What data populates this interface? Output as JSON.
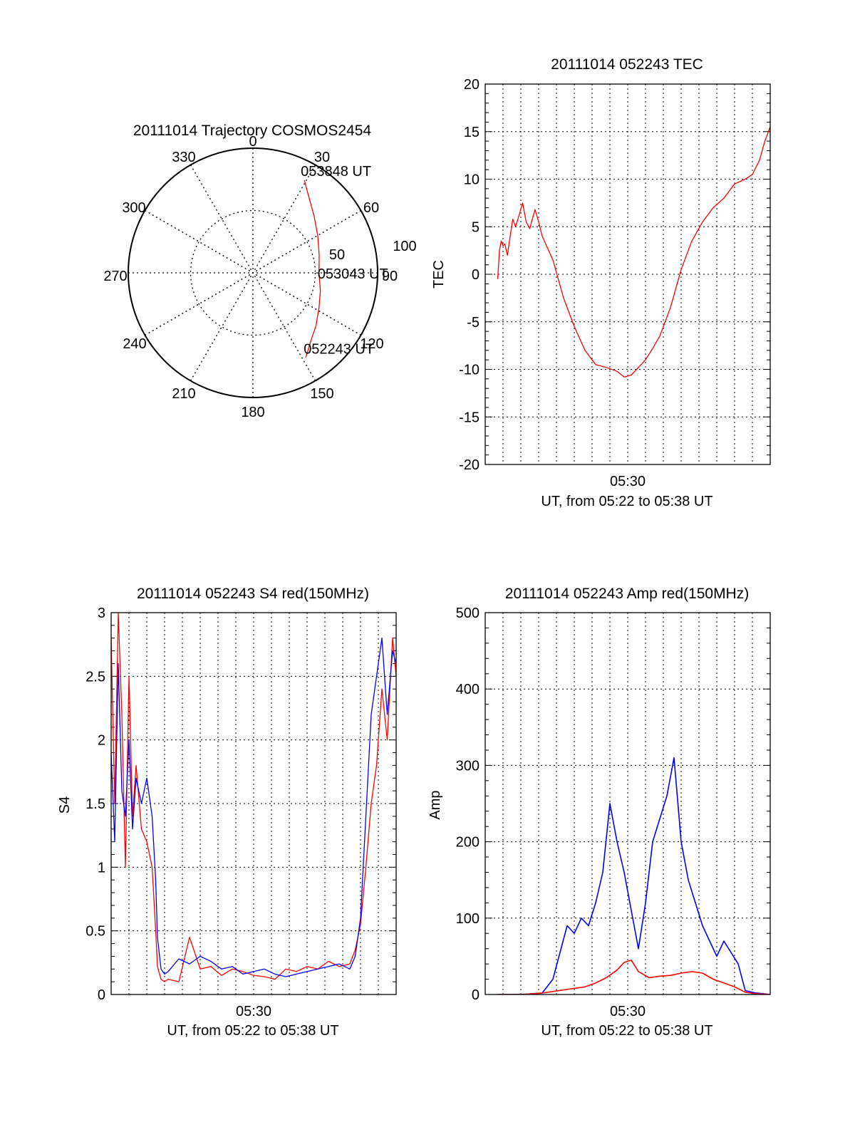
{
  "figure": {
    "background": "#ffffff",
    "series_colors": {
      "red": "#ff0000",
      "blue": "#0000ff"
    }
  },
  "chart_data": [
    {
      "id": "trajectory",
      "type": "polar",
      "title": "20111014 Trajectory COSMOS2454",
      "azimuth_labels": [
        "0",
        "30",
        "60",
        "90",
        "120",
        "150",
        "180",
        "210",
        "240",
        "270",
        "300",
        "330"
      ],
      "radial_labels": [
        "50",
        "100"
      ],
      "grid": true,
      "track": {
        "color": "#ff0000",
        "points": [
          {
            "az": 148,
            "zenith": 80
          },
          {
            "az": 140,
            "zenith": 72
          },
          {
            "az": 130,
            "zenith": 66
          },
          {
            "az": 118,
            "zenith": 60
          },
          {
            "az": 105,
            "zenith": 56
          },
          {
            "az": 90,
            "zenith": 53
          },
          {
            "az": 75,
            "zenith": 55
          },
          {
            "az": 60,
            "zenith": 60
          },
          {
            "az": 47,
            "zenith": 67
          },
          {
            "az": 36,
            "zenith": 76
          },
          {
            "az": 29,
            "zenith": 85
          }
        ]
      },
      "annotations": [
        {
          "text": "053848 UT",
          "az": 29,
          "zenith": 85
        },
        {
          "text": "053043 UT",
          "az": 90,
          "zenith": 53
        },
        {
          "text": "052243 UT",
          "az": 148,
          "zenith": 80
        }
      ]
    },
    {
      "id": "tec",
      "type": "line",
      "title": "20111014 052243 TEC",
      "xlabel": "UT, from 05:22 to 05:38 UT",
      "ylabel": "TEC",
      "xlim": [
        5.36667,
        5.63333
      ],
      "ylim": [
        -20,
        20
      ],
      "yticks": [
        -20,
        -15,
        -10,
        -5,
        0,
        5,
        10,
        15,
        20
      ],
      "xtick_labels": [
        {
          "value": 5.5,
          "label": "05:30"
        }
      ],
      "grid": true,
      "series": [
        {
          "color": "#ff0000",
          "x": [
            5.37833,
            5.38,
            5.38167,
            5.38333,
            5.385,
            5.3875,
            5.39,
            5.3925,
            5.395,
            5.39833,
            5.40167,
            5.405,
            5.40833,
            5.41,
            5.41333,
            5.41667,
            5.42,
            5.43,
            5.44,
            5.45,
            5.46,
            5.47,
            5.48,
            5.49,
            5.49667,
            5.50333,
            5.51,
            5.51667,
            5.52333,
            5.53,
            5.54,
            5.55,
            5.56,
            5.57,
            5.58,
            5.59,
            5.6,
            5.61,
            5.61667,
            5.62333,
            5.62833,
            5.63333
          ],
          "values": [
            -0.5,
            2.5,
            3.5,
            3.0,
            3.2,
            2.0,
            4.0,
            5.8,
            5.0,
            6.2,
            7.5,
            5.5,
            4.8,
            5.5,
            6.8,
            5.5,
            4.0,
            1.5,
            -2.5,
            -5.5,
            -8.0,
            -9.5,
            -9.8,
            -10.2,
            -10.8,
            -10.6,
            -9.8,
            -9.0,
            -7.8,
            -6.5,
            -3.5,
            0.5,
            3.5,
            5.5,
            7.0,
            8.0,
            9.5,
            10.0,
            10.5,
            12.0,
            14.0,
            15.5
          ]
        }
      ]
    },
    {
      "id": "s4",
      "type": "line",
      "title": "20111014 052243 S4 red(150MHz)",
      "xlabel": "UT, from 05:22 to 05:38 UT",
      "ylabel": "S4",
      "xlim": [
        5.36667,
        5.63333
      ],
      "ylim": [
        0,
        3
      ],
      "yticks": [
        0,
        0.5,
        1,
        1.5,
        2,
        2.5,
        3
      ],
      "ytick_labels": [
        "0",
        "0.5",
        "1",
        "1.5",
        "2",
        "2.5",
        "3"
      ],
      "xtick_labels": [
        {
          "value": 5.5,
          "label": "05:30"
        }
      ],
      "grid": true,
      "series": [
        {
          "color": "#ff0000",
          "x": [
            5.36667,
            5.37,
            5.37333,
            5.37667,
            5.38,
            5.38333,
            5.38667,
            5.39,
            5.395,
            5.4,
            5.405,
            5.40833,
            5.41,
            5.41333,
            5.41667,
            5.42,
            5.43,
            5.44,
            5.45,
            5.46,
            5.47,
            5.48,
            5.49,
            5.5,
            5.51,
            5.52,
            5.53,
            5.54,
            5.55,
            5.56,
            5.57,
            5.58,
            5.59,
            5.595,
            5.6,
            5.605,
            5.61,
            5.615,
            5.62,
            5.625,
            5.63,
            5.63333
          ],
          "values": [
            2.8,
            1.5,
            3.0,
            2.2,
            1.0,
            2.5,
            1.4,
            1.8,
            1.3,
            1.2,
            1.0,
            0.5,
            0.22,
            0.12,
            0.1,
            0.12,
            0.1,
            0.45,
            0.2,
            0.22,
            0.15,
            0.2,
            0.18,
            0.15,
            0.14,
            0.12,
            0.2,
            0.18,
            0.22,
            0.2,
            0.26,
            0.22,
            0.24,
            0.35,
            0.55,
            1.0,
            1.5,
            1.8,
            2.4,
            2.0,
            2.8,
            2.5
          ]
        },
        {
          "color": "#0000ff",
          "x": [
            5.36667,
            5.37,
            5.37333,
            5.37667,
            5.38,
            5.38333,
            5.38667,
            5.39,
            5.395,
            5.4,
            5.405,
            5.40833,
            5.41,
            5.41333,
            5.41667,
            5.42,
            5.43,
            5.44,
            5.45,
            5.46,
            5.47,
            5.48,
            5.49,
            5.5,
            5.51,
            5.52,
            5.53,
            5.54,
            5.55,
            5.56,
            5.57,
            5.58,
            5.59,
            5.595,
            5.6,
            5.605,
            5.61,
            5.615,
            5.62,
            5.625,
            5.63,
            5.63333
          ],
          "values": [
            1.9,
            1.2,
            2.6,
            1.6,
            1.4,
            2.0,
            1.3,
            1.7,
            1.5,
            1.7,
            1.4,
            0.9,
            0.45,
            0.2,
            0.16,
            0.18,
            0.28,
            0.24,
            0.3,
            0.26,
            0.2,
            0.22,
            0.16,
            0.18,
            0.2,
            0.16,
            0.14,
            0.16,
            0.18,
            0.2,
            0.22,
            0.24,
            0.2,
            0.3,
            0.6,
            1.4,
            2.2,
            2.5,
            2.8,
            2.2,
            2.7,
            2.6
          ]
        }
      ]
    },
    {
      "id": "amp",
      "type": "line",
      "title": "20111014 052243 Amp red(150MHz)",
      "xlabel": "UT, from 05:22 to 05:38 UT",
      "ylabel": "Amp",
      "xlim": [
        5.36667,
        5.63333
      ],
      "ylim": [
        0,
        500
      ],
      "yticks": [
        0,
        100,
        200,
        300,
        400,
        500
      ],
      "xtick_labels": [
        {
          "value": 5.5,
          "label": "05:30"
        }
      ],
      "grid": true,
      "series": [
        {
          "color": "#0000ff",
          "x": [
            5.37833,
            5.4,
            5.42,
            5.43,
            5.43667,
            5.44333,
            5.45,
            5.45667,
            5.46333,
            5.47,
            5.47667,
            5.48333,
            5.49,
            5.49667,
            5.50333,
            5.51,
            5.51667,
            5.52333,
            5.53,
            5.53667,
            5.54333,
            5.55,
            5.55667,
            5.56333,
            5.57,
            5.57667,
            5.58333,
            5.59,
            5.59667,
            5.60333,
            5.61,
            5.62,
            5.63333
          ],
          "values": [
            0,
            0,
            2,
            20,
            55,
            90,
            80,
            100,
            90,
            120,
            160,
            250,
            200,
            160,
            110,
            60,
            120,
            200,
            230,
            260,
            310,
            200,
            150,
            120,
            90,
            70,
            50,
            70,
            55,
            40,
            5,
            2,
            0
          ]
        },
        {
          "color": "#ff0000",
          "x": [
            5.37833,
            5.4,
            5.42,
            5.44,
            5.46,
            5.47,
            5.48,
            5.49,
            5.49667,
            5.50333,
            5.51,
            5.52,
            5.53,
            5.54,
            5.55,
            5.56,
            5.57,
            5.58,
            5.59,
            5.6,
            5.61,
            5.62,
            5.63333
          ],
          "values": [
            0,
            0,
            2,
            6,
            10,
            15,
            22,
            32,
            42,
            45,
            30,
            22,
            24,
            25,
            28,
            30,
            28,
            20,
            15,
            10,
            3,
            1,
            0
          ]
        }
      ]
    }
  ]
}
